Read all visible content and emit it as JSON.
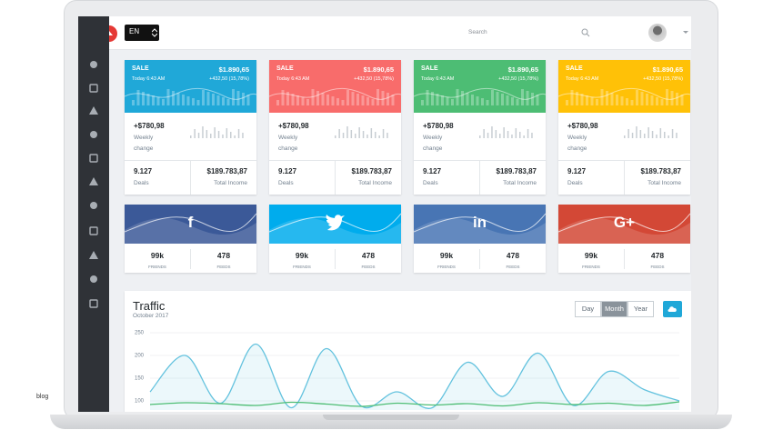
{
  "header": {
    "language": "EN",
    "search": "Search"
  },
  "sale_cards": [
    {
      "label": "SALE",
      "amount": "$1.890,65",
      "time": "Today 6:43 AM",
      "change": "+432,50 (15,78%)",
      "weekly_amount": "+$780,98",
      "weekly_label": "Weekly change",
      "deals": "9.127",
      "deals_label": "Deals",
      "income": "$189.783,87",
      "income_label": "Total Income",
      "color": "#20a8d8"
    },
    {
      "label": "SALE",
      "amount": "$1.890,65",
      "time": "Today 6:43 AM",
      "change": "+432,50 (15,78%)",
      "weekly_amount": "+$780,98",
      "weekly_label": "Weekly change",
      "deals": "9.127",
      "deals_label": "Deals",
      "income": "$189.783,87",
      "income_label": "Total Income",
      "color": "#f86c6b"
    },
    {
      "label": "SALE",
      "amount": "$1.890,65",
      "time": "Today 6:43 AM",
      "change": "+432,50 (15,78%)",
      "weekly_amount": "+$780,98",
      "weekly_label": "Weekly change",
      "deals": "9.127",
      "deals_label": "Deals",
      "income": "$189.783,87",
      "income_label": "Total Income",
      "color": "#4dbd74"
    },
    {
      "label": "SALE",
      "amount": "$1.890,65",
      "time": "Today 6:43 AM",
      "change": "+432,50 (15,78%)",
      "weekly_amount": "+$780,98",
      "weekly_label": "Weekly change",
      "deals": "9.127",
      "deals_label": "Deals",
      "income": "$189.783,87",
      "income_label": "Total Income",
      "color": "#ffc107"
    }
  ],
  "social_cards": [
    {
      "icon": "f",
      "friends": "99k",
      "friends_label": "FRIENDS",
      "feeds": "478",
      "feeds_label": "FEEDS",
      "color": "#3b5998"
    },
    {
      "icon": "",
      "friends": "99k",
      "friends_label": "FRIENDS",
      "feeds": "478",
      "feeds_label": "FEEDS",
      "color": "#00aced"
    },
    {
      "icon": "in",
      "friends": "99k",
      "friends_label": "FRIENDS",
      "feeds": "478",
      "feeds_label": "FEEDS",
      "color": "#4875b4"
    },
    {
      "icon": "G+",
      "friends": "99k",
      "friends_label": "FRIENDS",
      "feeds": "478",
      "feeds_label": "FEEDS",
      "color": "#d34836"
    }
  ],
  "traffic": {
    "title": "Traffic",
    "subtitle": "October 2017",
    "ranges": [
      "Day",
      "Month",
      "Year"
    ],
    "active_range": 1,
    "ylim": [
      80,
      260
    ],
    "yticks": [
      250,
      200,
      150,
      100
    ],
    "grid": true,
    "series": [
      {
        "color": "#63c2de",
        "values": [
          120,
          200,
          95,
          225,
          85,
          215,
          88,
          120,
          85,
          185,
          110,
          205,
          90,
          165,
          125,
          100
        ]
      },
      {
        "color": "#4dbd74",
        "values": [
          92,
          96,
          94,
          90,
          97,
          93,
          88,
          95,
          91,
          94,
          89,
          96,
          92,
          95,
          90,
          98
        ]
      }
    ]
  },
  "footer_label": "blog"
}
